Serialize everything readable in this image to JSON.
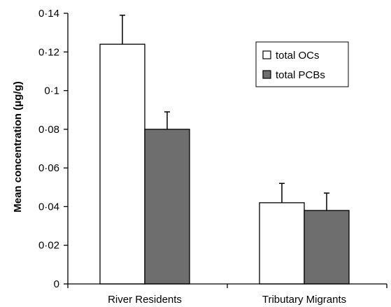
{
  "chart_data": {
    "type": "bar",
    "title": "",
    "xlabel": "",
    "ylabel": "Mean concentration (μg/g)",
    "categories": [
      "River Residents",
      "Tributary Migrants"
    ],
    "series": [
      {
        "name": "total OCs",
        "values": [
          0.124,
          0.042
        ],
        "errors": [
          0.015,
          0.01
        ],
        "color": "#ffffff"
      },
      {
        "name": "total PCBs",
        "values": [
          0.08,
          0.038
        ],
        "errors": [
          0.009,
          0.009
        ],
        "color": "#6e6e6e"
      }
    ],
    "ylim": [
      0,
      0.14
    ],
    "yticks": [
      0,
      0.02,
      0.04,
      0.06,
      0.08,
      0.1,
      0.12,
      0.14
    ],
    "ytick_labels": [
      "0",
      "0·02",
      "0·04",
      "0·06",
      "0·08",
      "0·1",
      "0·12",
      "0·14"
    ],
    "grid": false,
    "legend_position": "top-right"
  }
}
